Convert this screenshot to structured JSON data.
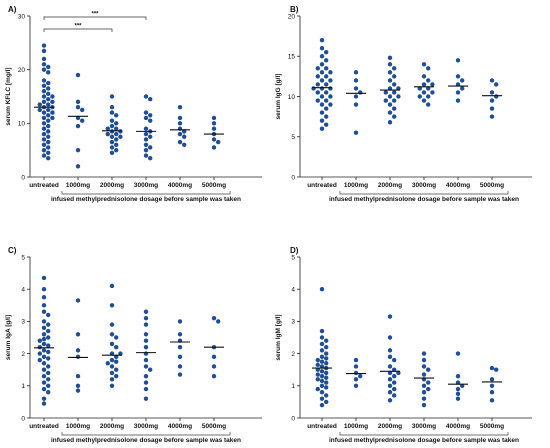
{
  "chart_data": [
    {
      "type": "scatter",
      "panel": "A)",
      "ylabel": "serum KFLC [mg/l]",
      "ylim": [
        0,
        30
      ],
      "yticks": [
        0,
        10,
        20,
        30
      ],
      "categories": [
        "untreated",
        "1000mg",
        "2000mg",
        "3000mg",
        "4000mg",
        "5000mg"
      ],
      "sublabel": "infused methylprednisolone dosage before sample was taken",
      "means": [
        13.0,
        11.3,
        8.6,
        8.5,
        8.8,
        8.0
      ],
      "significance": [
        {
          "from": "untreated",
          "to": "3000mg",
          "label": "***"
        },
        {
          "from": "untreated",
          "to": "2000mg",
          "label": "***"
        }
      ],
      "points": [
        [
          24.5,
          23.5,
          22.0,
          21.0,
          20.5,
          20.0,
          19.5,
          18.0,
          17.5,
          17.0,
          16.5,
          16.0,
          15.5,
          15.0,
          15.0,
          14.5,
          14.0,
          14.0,
          13.5,
          13.5,
          13.0,
          13.0,
          12.5,
          12.5,
          12.0,
          12.0,
          11.5,
          11.0,
          11.0,
          10.5,
          10.0,
          9.5,
          9.0,
          8.5,
          8.0,
          7.5,
          7.0,
          6.5,
          6.0,
          5.5,
          5.0,
          4.5,
          4.0,
          3.5
        ],
        [
          19.0,
          14.0,
          13.0,
          12.5,
          11.0,
          10.5,
          9.5,
          5.0,
          2.0
        ],
        [
          15.0,
          13.0,
          12.0,
          11.5,
          10.5,
          10.0,
          9.5,
          9.0,
          9.0,
          8.5,
          8.5,
          8.0,
          8.0,
          7.5,
          7.5,
          7.0,
          6.5,
          6.0,
          5.5,
          5.0,
          4.5
        ],
        [
          15.0,
          14.5,
          12.0,
          11.5,
          11.0,
          10.5,
          9.0,
          8.5,
          8.0,
          7.5,
          7.0,
          6.0,
          5.5,
          5.0,
          4.0,
          3.5
        ],
        [
          13.0,
          11.0,
          10.0,
          9.0,
          8.5,
          8.0,
          7.5,
          6.5,
          6.0
        ],
        [
          11.0,
          10.0,
          9.0,
          8.0,
          7.0,
          6.5,
          5.5
        ]
      ]
    },
    {
      "type": "scatter",
      "panel": "B)",
      "ylabel": "serum IgG [g/l]",
      "ylim": [
        0,
        20
      ],
      "yticks": [
        0,
        5,
        10,
        15,
        20
      ],
      "categories": [
        "untreated",
        "1000mg",
        "2000mg",
        "3000mg",
        "4000mg",
        "5000mg"
      ],
      "sublabel": "infused methylprednisolone dosage before sample was taken",
      "means": [
        11.1,
        10.4,
        10.8,
        11.2,
        11.3,
        10.1
      ],
      "points": [
        [
          17.0,
          16.0,
          15.5,
          15.0,
          14.5,
          14.0,
          13.5,
          13.5,
          13.0,
          13.0,
          12.5,
          12.5,
          12.0,
          12.0,
          11.5,
          11.5,
          11.0,
          11.0,
          11.0,
          10.5,
          10.5,
          10.0,
          10.0,
          9.5,
          9.5,
          9.0,
          9.0,
          8.5,
          8.0,
          7.5,
          7.0,
          6.5,
          6.0
        ],
        [
          13.0,
          12.0,
          11.0,
          10.5,
          10.0,
          9.0,
          5.5
        ],
        [
          14.8,
          14.0,
          13.5,
          13.0,
          12.5,
          12.0,
          11.5,
          11.0,
          11.0,
          10.5,
          10.5,
          10.0,
          10.0,
          9.5,
          9.5,
          9.0,
          8.5,
          8.0,
          7.5,
          6.8
        ],
        [
          14.0,
          13.5,
          12.5,
          12.0,
          11.5,
          11.5,
          11.0,
          11.0,
          10.5,
          10.5,
          10.0,
          10.0,
          9.5,
          9.0
        ],
        [
          14.5,
          12.5,
          12.0,
          11.5,
          11.0,
          10.5,
          9.5
        ],
        [
          12.0,
          11.5,
          10.5,
          10.0,
          9.5,
          8.5,
          7.5
        ]
      ]
    },
    {
      "type": "scatter",
      "panel": "C)",
      "ylabel": "serum IgA [g/l]",
      "ylim": [
        0,
        5
      ],
      "yticks": [
        0,
        1,
        2,
        3,
        4,
        5
      ],
      "categories": [
        "untreated",
        "1000mg",
        "2000mg",
        "3000mg",
        "4000mg",
        "5000mg"
      ],
      "sublabel": "infused methylprednisolone dosage before sample was taken",
      "means": [
        2.18,
        1.88,
        1.95,
        2.03,
        2.36,
        2.2
      ],
      "points": [
        [
          4.35,
          4.0,
          3.75,
          3.5,
          3.3,
          3.2,
          3.0,
          2.9,
          2.8,
          2.7,
          2.6,
          2.5,
          2.45,
          2.4,
          2.3,
          2.25,
          2.2,
          2.1,
          2.05,
          2.0,
          1.9,
          1.85,
          1.8,
          1.7,
          1.6,
          1.5,
          1.4,
          1.3,
          1.2,
          1.1,
          1.0,
          0.9,
          0.8,
          0.6,
          0.45
        ],
        [
          3.65,
          2.6,
          2.1,
          1.9,
          1.3,
          1.0,
          0.85
        ],
        [
          4.1,
          3.5,
          2.9,
          2.6,
          2.5,
          2.3,
          2.2,
          2.0,
          2.0,
          1.9,
          1.8,
          1.75,
          1.7,
          1.6,
          1.5,
          1.4,
          1.3,
          1.2,
          1.0
        ],
        [
          3.3,
          3.1,
          2.9,
          2.6,
          2.4,
          2.2,
          2.0,
          1.8,
          1.6,
          1.5,
          1.3,
          1.1,
          0.9,
          0.6
        ],
        [
          3.0,
          2.6,
          2.4,
          2.2,
          1.9,
          1.6,
          1.35
        ],
        [
          3.1,
          3.0,
          2.2,
          1.9,
          1.6,
          1.3
        ]
      ]
    },
    {
      "type": "scatter",
      "panel": "D)",
      "ylabel": "serum IgM [g/l]",
      "ylim": [
        0,
        5
      ],
      "yticks": [
        0,
        1,
        2,
        3,
        4,
        5
      ],
      "categories": [
        "untreated",
        "1000mg",
        "2000mg",
        "3000mg",
        "4000mg",
        "5000mg"
      ],
      "sublabel": "infused methylprednisolone dosage before sample was taken",
      "means": [
        1.55,
        1.38,
        1.45,
        1.24,
        1.05,
        1.12
      ],
      "points": [
        [
          4.0,
          2.7,
          2.5,
          2.4,
          2.3,
          2.2,
          2.1,
          2.0,
          1.9,
          1.85,
          1.8,
          1.75,
          1.7,
          1.65,
          1.6,
          1.55,
          1.5,
          1.45,
          1.4,
          1.35,
          1.3,
          1.25,
          1.2,
          1.15,
          1.1,
          1.0,
          0.95,
          0.9,
          0.8,
          0.7,
          0.6,
          0.5,
          0.4
        ],
        [
          1.8,
          1.6,
          1.4,
          1.3,
          1.2,
          1.0
        ],
        [
          3.15,
          2.5,
          2.1,
          1.9,
          1.8,
          1.6,
          1.5,
          1.4,
          1.4,
          1.3,
          1.2,
          1.1,
          1.0,
          0.9,
          0.8,
          0.7,
          0.55
        ],
        [
          2.0,
          1.8,
          1.6,
          1.5,
          1.35,
          1.2,
          1.1,
          1.0,
          0.9,
          0.8,
          0.6,
          0.4
        ],
        [
          2.0,
          1.3,
          1.1,
          1.0,
          0.9,
          0.75,
          0.6
        ],
        [
          1.55,
          1.5,
          1.2,
          1.0,
          0.8,
          0.55
        ]
      ]
    }
  ]
}
